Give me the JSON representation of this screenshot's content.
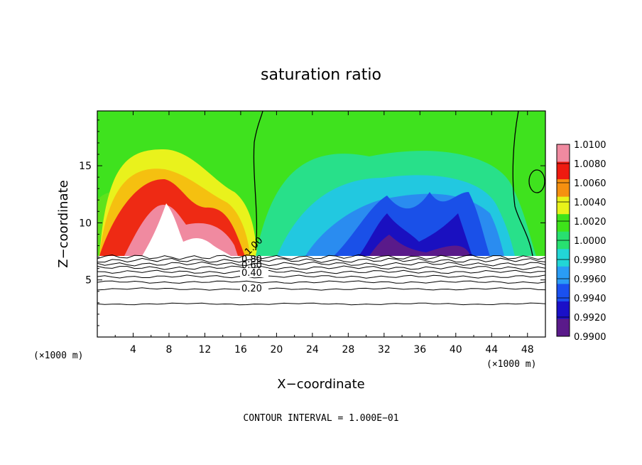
{
  "chart_data": {
    "type": "heatmap",
    "title": "saturation ratio",
    "xlabel": "X−coordinate",
    "ylabel": "Z−coordinate",
    "x_unit_left": "(×1000 m)",
    "x_unit_right": "(×1000 m)",
    "xlim": [
      0,
      50
    ],
    "ylim": [
      0,
      19.8
    ],
    "x_ticks": [
      4,
      8,
      12,
      16,
      20,
      24,
      28,
      32,
      36,
      40,
      44,
      48
    ],
    "y_ticks": [
      5,
      10,
      15
    ],
    "footer": "CONTOUR INTERVAL = 1.000E−01",
    "colorbar": {
      "levels": [
        0.99,
        0.992,
        0.994,
        0.996,
        0.998,
        1.0,
        1.002,
        1.004,
        1.006,
        1.008,
        1.01
      ],
      "labels": [
        "0.9900",
        "0.9920",
        "0.9940",
        "0.9960",
        "0.9980",
        "1.0000",
        "1.0020",
        "1.0040",
        "1.0060",
        "1.0080",
        "1.0100"
      ],
      "colors": [
        "#5a1a8a",
        "#1a10c8",
        "#1a50f0",
        "#2a9cf5",
        "#22d6d6",
        "#28e070",
        "#3ee31a",
        "#e8f21a",
        "#f59010",
        "#ee1a10",
        "#f08aa0"
      ]
    },
    "contour_labels": [
      "0.20",
      "0.40",
      "0.60",
      "0.80",
      "1.00"
    ],
    "contour_levels": [
      0.1,
      0.2,
      0.3,
      0.4,
      0.5,
      0.6,
      0.7,
      0.8,
      0.9,
      1.0
    ]
  }
}
